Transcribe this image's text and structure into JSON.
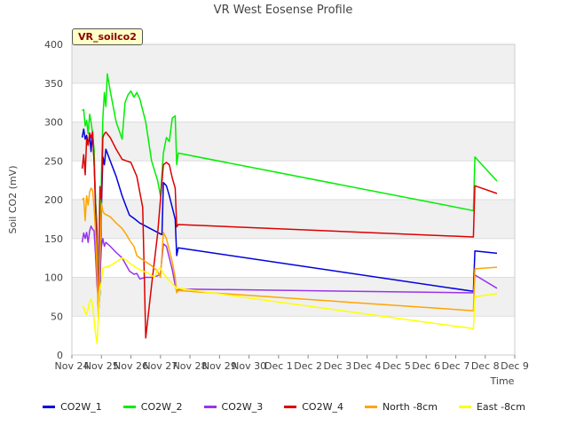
{
  "chart_data": {
    "type": "line",
    "title": "VR West Eosense Profile",
    "xlabel": "Time",
    "ylabel": "Soil CO2 (mV)",
    "badge": "VR_soilco2",
    "ylim": [
      0,
      400
    ],
    "yticks": [
      0,
      50,
      100,
      150,
      200,
      250,
      300,
      350,
      400
    ],
    "xlim": [
      0,
      15
    ],
    "xticks": [
      {
        "v": 0,
        "label": "Nov 24"
      },
      {
        "v": 1,
        "label": "Nov 25"
      },
      {
        "v": 2,
        "label": "Nov 26"
      },
      {
        "v": 3,
        "label": "Nov 27"
      },
      {
        "v": 4,
        "label": "Nov 28"
      },
      {
        "v": 5,
        "label": "Nov 29"
      },
      {
        "v": 6,
        "label": "Nov 30"
      },
      {
        "v": 7,
        "label": "Dec 1"
      },
      {
        "v": 8,
        "label": "Dec 2"
      },
      {
        "v": 9,
        "label": "Dec 3"
      },
      {
        "v": 10,
        "label": "Dec 4"
      },
      {
        "v": 11,
        "label": "Dec 5"
      },
      {
        "v": 12,
        "label": "Dec 6"
      },
      {
        "v": 13,
        "label": "Dec 7"
      },
      {
        "v": 14,
        "label": "Dec 8"
      },
      {
        "v": 15,
        "label": "Dec 9"
      }
    ],
    "series": [
      {
        "name": "CO2W_1",
        "color": "#0000dd",
        "points": [
          [
            0.35,
            280
          ],
          [
            0.4,
            291
          ],
          [
            0.45,
            278
          ],
          [
            0.5,
            283
          ],
          [
            0.55,
            270
          ],
          [
            0.6,
            283
          ],
          [
            0.65,
            262
          ],
          [
            0.7,
            288
          ],
          [
            0.75,
            250
          ],
          [
            0.8,
            200
          ],
          [
            0.85,
            160
          ],
          [
            0.9,
            52
          ],
          [
            0.95,
            80
          ],
          [
            1.0,
            190
          ],
          [
            1.05,
            255
          ],
          [
            1.1,
            245
          ],
          [
            1.15,
            265
          ],
          [
            1.3,
            250
          ],
          [
            1.5,
            230
          ],
          [
            1.7,
            205
          ],
          [
            1.85,
            190
          ],
          [
            1.95,
            180
          ],
          [
            2.1,
            176
          ],
          [
            2.3,
            170
          ],
          [
            2.5,
            166
          ],
          [
            2.7,
            162
          ],
          [
            2.9,
            158
          ],
          [
            3.05,
            155
          ],
          [
            3.1,
            222
          ],
          [
            3.2,
            218
          ],
          [
            3.3,
            205
          ],
          [
            3.4,
            190
          ],
          [
            3.5,
            175
          ],
          [
            3.55,
            128
          ],
          [
            3.6,
            138
          ],
          [
            13.6,
            82
          ],
          [
            13.65,
            134
          ],
          [
            14.4,
            131
          ]
        ]
      },
      {
        "name": "CO2W_2",
        "color": "#00ee00",
        "points": [
          [
            0.35,
            315
          ],
          [
            0.4,
            316
          ],
          [
            0.45,
            295
          ],
          [
            0.5,
            302
          ],
          [
            0.55,
            285
          ],
          [
            0.6,
            310
          ],
          [
            0.65,
            300
          ],
          [
            0.7,
            285
          ],
          [
            0.75,
            265
          ],
          [
            0.8,
            200
          ],
          [
            0.85,
            140
          ],
          [
            0.9,
            75
          ],
          [
            0.95,
            110
          ],
          [
            1.0,
            230
          ],
          [
            1.05,
            305
          ],
          [
            1.1,
            338
          ],
          [
            1.15,
            320
          ],
          [
            1.2,
            362
          ],
          [
            1.3,
            340
          ],
          [
            1.5,
            300
          ],
          [
            1.7,
            278
          ],
          [
            1.8,
            325
          ],
          [
            1.9,
            335
          ],
          [
            2.0,
            340
          ],
          [
            2.1,
            332
          ],
          [
            2.2,
            338
          ],
          [
            2.3,
            330
          ],
          [
            2.5,
            300
          ],
          [
            2.7,
            250
          ],
          [
            2.9,
            225
          ],
          [
            3.0,
            205
          ],
          [
            3.1,
            260
          ],
          [
            3.2,
            280
          ],
          [
            3.3,
            275
          ],
          [
            3.4,
            305
          ],
          [
            3.5,
            308
          ],
          [
            3.55,
            245
          ],
          [
            3.6,
            260
          ],
          [
            13.6,
            186
          ],
          [
            13.65,
            255
          ],
          [
            14.4,
            224
          ]
        ]
      },
      {
        "name": "CO2W_3",
        "color": "#9933ee",
        "points": [
          [
            0.35,
            145
          ],
          [
            0.4,
            157
          ],
          [
            0.45,
            150
          ],
          [
            0.5,
            158
          ],
          [
            0.55,
            145
          ],
          [
            0.6,
            160
          ],
          [
            0.65,
            166
          ],
          [
            0.7,
            162
          ],
          [
            0.75,
            160
          ],
          [
            0.8,
            130
          ],
          [
            0.85,
            90
          ],
          [
            0.9,
            70
          ],
          [
            0.95,
            100
          ],
          [
            1.0,
            140
          ],
          [
            1.05,
            150
          ],
          [
            1.1,
            140
          ],
          [
            1.15,
            145
          ],
          [
            1.3,
            140
          ],
          [
            1.5,
            132
          ],
          [
            1.7,
            125
          ],
          [
            1.85,
            115
          ],
          [
            1.95,
            108
          ],
          [
            2.1,
            104
          ],
          [
            2.2,
            105
          ],
          [
            2.3,
            98
          ],
          [
            2.5,
            100
          ],
          [
            2.7,
            100
          ],
          [
            2.9,
            102
          ],
          [
            3.0,
            105
          ],
          [
            3.1,
            143
          ],
          [
            3.2,
            140
          ],
          [
            3.3,
            125
          ],
          [
            3.4,
            110
          ],
          [
            3.5,
            90
          ],
          [
            3.55,
            82
          ],
          [
            3.6,
            85
          ],
          [
            13.6,
            80
          ],
          [
            13.65,
            103
          ],
          [
            14.4,
            86
          ]
        ]
      },
      {
        "name": "CO2W_4",
        "color": "#dd0000",
        "points": [
          [
            0.35,
            240
          ],
          [
            0.4,
            258
          ],
          [
            0.45,
            232
          ],
          [
            0.5,
            278
          ],
          [
            0.55,
            270
          ],
          [
            0.6,
            286
          ],
          [
            0.65,
            280
          ],
          [
            0.7,
            287
          ],
          [
            0.75,
            250
          ],
          [
            0.8,
            190
          ],
          [
            0.85,
            120
          ],
          [
            0.9,
            55
          ],
          [
            0.95,
            217
          ],
          [
            1.0,
            200
          ],
          [
            1.05,
            280
          ],
          [
            1.1,
            285
          ],
          [
            1.15,
            287
          ],
          [
            1.3,
            280
          ],
          [
            1.5,
            265
          ],
          [
            1.7,
            252
          ],
          [
            1.85,
            250
          ],
          [
            2.0,
            248
          ],
          [
            2.2,
            230
          ],
          [
            2.4,
            190
          ],
          [
            2.5,
            22
          ],
          [
            2.7,
            90
          ],
          [
            2.9,
            155
          ],
          [
            3.0,
            200
          ],
          [
            3.1,
            245
          ],
          [
            3.2,
            248
          ],
          [
            3.3,
            245
          ],
          [
            3.4,
            228
          ],
          [
            3.5,
            215
          ],
          [
            3.55,
            165
          ],
          [
            3.6,
            168
          ],
          [
            13.6,
            152
          ],
          [
            13.65,
            218
          ],
          [
            14.4,
            208
          ]
        ]
      },
      {
        "name": "North -8cm",
        "color": "#ffa500",
        "points": [
          [
            0.35,
            200
          ],
          [
            0.4,
            202
          ],
          [
            0.45,
            173
          ],
          [
            0.5,
            205
          ],
          [
            0.55,
            193
          ],
          [
            0.6,
            210
          ],
          [
            0.65,
            215
          ],
          [
            0.7,
            212
          ],
          [
            0.75,
            190
          ],
          [
            0.8,
            160
          ],
          [
            0.85,
            110
          ],
          [
            0.9,
            47
          ],
          [
            0.95,
            130
          ],
          [
            1.0,
            195
          ],
          [
            1.05,
            185
          ],
          [
            1.1,
            182
          ],
          [
            1.3,
            178
          ],
          [
            1.5,
            170
          ],
          [
            1.7,
            163
          ],
          [
            1.85,
            155
          ],
          [
            1.95,
            148
          ],
          [
            2.1,
            140
          ],
          [
            2.2,
            128
          ],
          [
            2.3,
            125
          ],
          [
            2.5,
            120
          ],
          [
            2.7,
            115
          ],
          [
            2.9,
            108
          ],
          [
            3.0,
            100
          ],
          [
            3.1,
            158
          ],
          [
            3.2,
            150
          ],
          [
            3.3,
            135
          ],
          [
            3.4,
            120
          ],
          [
            3.5,
            100
          ],
          [
            3.55,
            80
          ],
          [
            3.6,
            83
          ],
          [
            13.6,
            57
          ],
          [
            13.65,
            111
          ],
          [
            14.4,
            113
          ]
        ]
      },
      {
        "name": "East -8cm",
        "color": "#ffff00",
        "points": [
          [
            0.35,
            62
          ],
          [
            0.4,
            62
          ],
          [
            0.45,
            55
          ],
          [
            0.5,
            52
          ],
          [
            0.55,
            60
          ],
          [
            0.6,
            68
          ],
          [
            0.65,
            72
          ],
          [
            0.7,
            65
          ],
          [
            0.75,
            45
          ],
          [
            0.8,
            28
          ],
          [
            0.85,
            15
          ],
          [
            0.9,
            50
          ],
          [
            0.95,
            85
          ],
          [
            1.0,
            95
          ],
          [
            1.05,
            112
          ],
          [
            1.3,
            115
          ],
          [
            1.5,
            120
          ],
          [
            1.7,
            125
          ],
          [
            1.85,
            122
          ],
          [
            2.0,
            117
          ],
          [
            2.2,
            112
          ],
          [
            2.4,
            108
          ],
          [
            2.6,
            105
          ],
          [
            2.8,
            100
          ],
          [
            2.9,
            110
          ],
          [
            3.0,
            112
          ],
          [
            3.1,
            105
          ],
          [
            3.2,
            100
          ],
          [
            3.3,
            96
          ],
          [
            3.4,
            92
          ],
          [
            3.5,
            88
          ],
          [
            3.55,
            85
          ],
          [
            3.6,
            86
          ],
          [
            13.6,
            34
          ],
          [
            13.65,
            75
          ],
          [
            14.4,
            79
          ]
        ]
      }
    ]
  }
}
